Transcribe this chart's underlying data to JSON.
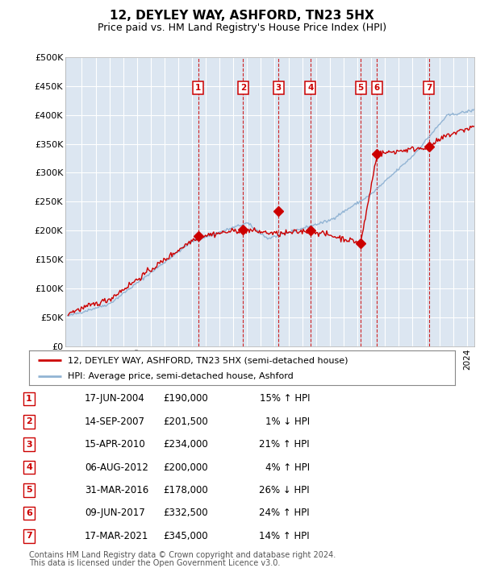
{
  "title": "12, DEYLEY WAY, ASHFORD, TN23 5HX",
  "subtitle": "Price paid vs. HM Land Registry's House Price Index (HPI)",
  "ylim": [
    0,
    500000
  ],
  "yticks": [
    0,
    50000,
    100000,
    150000,
    200000,
    250000,
    300000,
    350000,
    400000,
    450000,
    500000
  ],
  "ytick_labels": [
    "£0",
    "£50K",
    "£100K",
    "£150K",
    "£200K",
    "£250K",
    "£300K",
    "£350K",
    "£400K",
    "£450K",
    "£500K"
  ],
  "xlim_start": 1994.8,
  "xlim_end": 2024.5,
  "background_color": "#dce6f1",
  "grid_color": "#ffffff",
  "transactions": [
    {
      "num": 1,
      "date": "17-JUN-2004",
      "price": 190000,
      "year": 2004.46,
      "pct": "15%",
      "dir": "↑"
    },
    {
      "num": 2,
      "date": "14-SEP-2007",
      "price": 201500,
      "year": 2007.71,
      "pct": "1%",
      "dir": "↓"
    },
    {
      "num": 3,
      "date": "15-APR-2010",
      "price": 234000,
      "year": 2010.29,
      "pct": "21%",
      "dir": "↑"
    },
    {
      "num": 4,
      "date": "06-AUG-2012",
      "price": 200000,
      "year": 2012.6,
      "pct": "4%",
      "dir": "↑"
    },
    {
      "num": 5,
      "date": "31-MAR-2016",
      "price": 178000,
      "year": 2016.25,
      "pct": "26%",
      "dir": "↓"
    },
    {
      "num": 6,
      "date": "09-JUN-2017",
      "price": 332500,
      "year": 2017.44,
      "pct": "24%",
      "dir": "↑"
    },
    {
      "num": 7,
      "date": "17-MAR-2021",
      "price": 345000,
      "year": 2021.21,
      "pct": "14%",
      "dir": "↑"
    }
  ],
  "legend_line1": "12, DEYLEY WAY, ASHFORD, TN23 5HX (semi-detached house)",
  "legend_line2": "HPI: Average price, semi-detached house, Ashford",
  "footnote_line1": "Contains HM Land Registry data © Crown copyright and database right 2024.",
  "footnote_line2": "This data is licensed under the Open Government Licence v3.0.",
  "red_color": "#cc0000",
  "blue_color": "#92b4d4",
  "box_edge_color": "#cc0000"
}
